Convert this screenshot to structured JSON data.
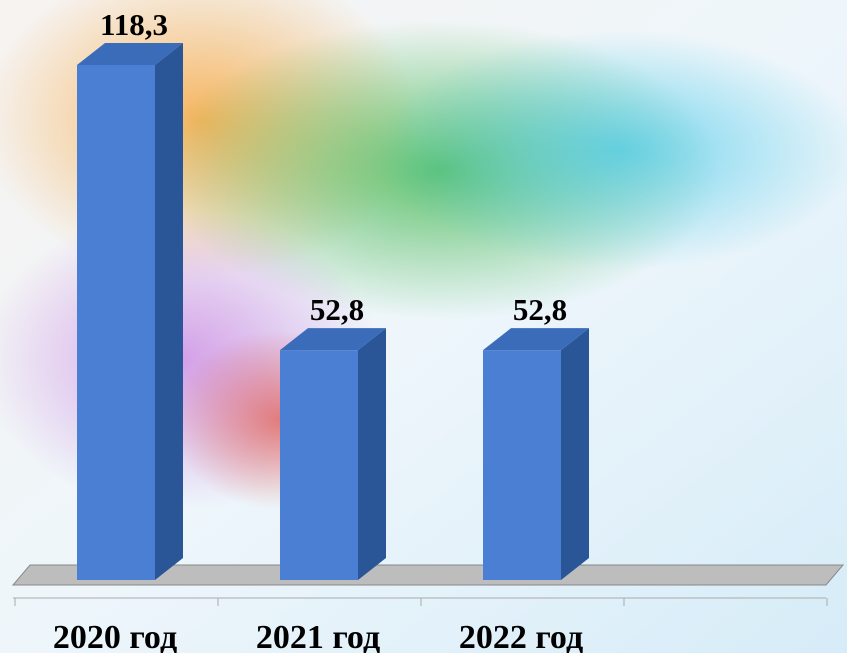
{
  "chart_data": {
    "type": "bar3d",
    "categories": [
      "2020 год",
      "2021 год",
      "2022 год",
      null
    ],
    "values": [
      118.3,
      52.8,
      52.8,
      null
    ],
    "value_labels": [
      "118,3",
      "52,8",
      "52,8",
      null
    ],
    "color": "#4a7fd4"
  }
}
